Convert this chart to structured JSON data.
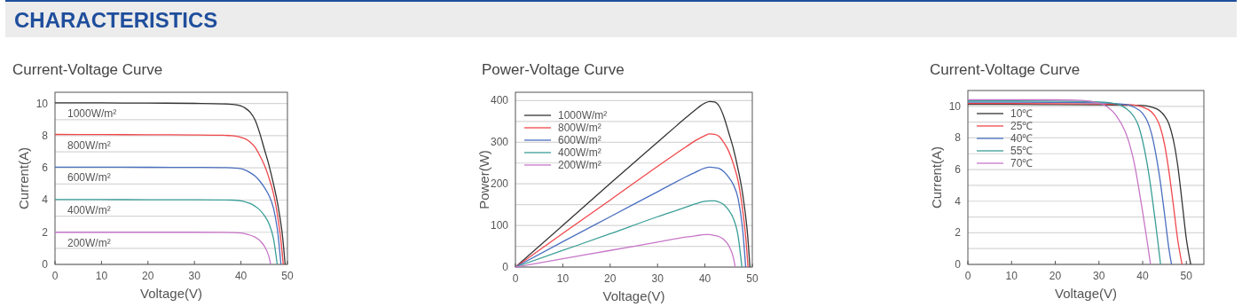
{
  "chart_data": [
    {
      "type": "other",
      "title": "CHARACTERISTICS"
    },
    {
      "type": "line",
      "title": "Current-Voltage Curve",
      "xlabel": "Voltage(V)",
      "ylabel": "Current(A)",
      "xlim": [
        0,
        50
      ],
      "ylim": [
        0,
        10.7
      ],
      "xticks": [
        0,
        10,
        20,
        30,
        40,
        50
      ],
      "yticks": [
        0,
        {
          "value": 1,
          "label": null
        },
        2,
        {
          "value": 3,
          "label": null
        },
        4,
        {
          "value": 5,
          "label": null
        },
        6,
        {
          "value": 7,
          "label": null
        },
        8,
        {
          "value": 9,
          "label": null
        },
        10
      ],
      "grid": "y",
      "legend": false,
      "series": [
        {
          "name": "1000W/m²",
          "color": "#333333",
          "x": [
            0,
            10,
            20,
            30,
            36,
            38,
            40,
            41,
            42,
            43,
            44,
            45,
            46,
            47,
            48,
            49,
            49.5
          ],
          "values": [
            10.05,
            10.04,
            10.03,
            10.01,
            9.98,
            9.95,
            9.85,
            9.7,
            9.45,
            9.0,
            8.2,
            7.2,
            6.2,
            5.0,
            3.6,
            1.6,
            0
          ]
        },
        {
          "name": "800W/m²",
          "color": "#f0474b",
          "x": [
            0,
            10,
            20,
            30,
            36,
            38,
            40,
            41,
            42,
            43,
            44,
            45,
            46,
            47,
            48,
            48.6,
            49.1
          ],
          "values": [
            8.08,
            8.07,
            8.06,
            8.05,
            8.03,
            8.0,
            7.9,
            7.8,
            7.6,
            7.3,
            6.8,
            6.2,
            5.4,
            4.4,
            2.8,
            1.5,
            0
          ]
        },
        {
          "name": "600W/m²",
          "color": "#4a6fc0",
          "x": [
            0,
            10,
            20,
            30,
            36,
            38,
            40,
            41,
            42,
            43,
            44,
            45,
            46,
            47,
            48,
            48.6
          ],
          "values": [
            6.05,
            6.05,
            6.04,
            6.03,
            6.02,
            6.0,
            5.95,
            5.85,
            5.7,
            5.5,
            5.2,
            4.8,
            4.3,
            3.5,
            1.8,
            0
          ]
        },
        {
          "name": "400W/m²",
          "color": "#3a9e96",
          "x": [
            0,
            10,
            20,
            30,
            36,
            38,
            40,
            41,
            42,
            43,
            44,
            45,
            46,
            47,
            47.8
          ],
          "values": [
            4.03,
            4.03,
            4.02,
            4.02,
            4.01,
            4.0,
            3.95,
            3.88,
            3.78,
            3.62,
            3.4,
            3.05,
            2.55,
            1.6,
            0
          ]
        },
        {
          "name": "200W/m²",
          "color": "#c776c8",
          "x": [
            0,
            10,
            20,
            30,
            36,
            38,
            40,
            41,
            42,
            43,
            44,
            45,
            46,
            46.4
          ],
          "values": [
            2.0,
            2.0,
            2.0,
            2.0,
            1.99,
            1.98,
            1.95,
            1.9,
            1.82,
            1.7,
            1.5,
            1.15,
            0.5,
            0
          ]
        }
      ]
    },
    {
      "type": "line",
      "title": "Power-Voltage Curve",
      "xlabel": "Voltage(V)",
      "ylabel": "Power(W)",
      "xlim": [
        0,
        50
      ],
      "ylim": [
        0,
        420
      ],
      "xticks": [
        0,
        10,
        20,
        30,
        40,
        50
      ],
      "yticks": [
        0,
        {
          "value": 50,
          "label": null
        },
        100,
        {
          "value": 150,
          "label": null
        },
        200,
        {
          "value": 250,
          "label": null
        },
        300,
        {
          "value": 350,
          "label": null
        },
        400
      ],
      "grid": "y",
      "legend": "top left",
      "series": [
        {
          "name": "1000W/m²",
          "color": "#333333",
          "x": [
            0,
            10,
            20,
            30,
            36,
            38,
            40,
            41,
            42,
            43,
            44,
            45,
            46,
            47,
            48,
            49,
            49.5
          ],
          "values": [
            0,
            100,
            201,
            300,
            359,
            378,
            394,
            398,
            397,
            387,
            361,
            324,
            285,
            235,
            173,
            78,
            0
          ]
        },
        {
          "name": "800W/m²",
          "color": "#f0474b",
          "x": [
            0,
            10,
            20,
            30,
            36,
            38,
            40,
            41,
            42,
            43,
            44,
            45,
            46,
            47,
            48,
            48.6,
            49.1
          ],
          "values": [
            0,
            81,
            161,
            242,
            289,
            304,
            316,
            320,
            319,
            314,
            299,
            279,
            248,
            207,
            134,
            73,
            0
          ]
        },
        {
          "name": "600W/m²",
          "color": "#4a6fc0",
          "x": [
            0,
            10,
            20,
            30,
            36,
            38,
            40,
            41,
            42,
            43,
            44,
            45,
            46,
            47,
            48,
            48.6
          ],
          "values": [
            0,
            61,
            121,
            181,
            217,
            228,
            238,
            240,
            239,
            237,
            229,
            216,
            198,
            165,
            86,
            0
          ]
        },
        {
          "name": "400W/m²",
          "color": "#3a9e96",
          "x": [
            0,
            10,
            20,
            30,
            36,
            38,
            40,
            41,
            42,
            43,
            44,
            45,
            46,
            47,
            47.8
          ],
          "values": [
            0,
            40,
            80,
            121,
            144,
            152,
            158,
            159,
            159,
            156,
            150,
            137,
            117,
            75,
            0
          ]
        },
        {
          "name": "200W/m²",
          "color": "#c776c8",
          "x": [
            0,
            10,
            20,
            30,
            36,
            38,
            40,
            41,
            42,
            43,
            44,
            45,
            46,
            46.4
          ],
          "values": [
            0,
            20,
            40,
            60,
            72,
            75,
            78,
            78,
            76,
            73,
            66,
            52,
            23,
            0
          ]
        }
      ]
    },
    {
      "type": "line",
      "title": "Current-Voltage Curve",
      "xlabel": "Voltage(V)",
      "ylabel": "Current(A)",
      "xlim": [
        0,
        54
      ],
      "ylim": [
        0,
        11
      ],
      "xticks": [
        0,
        10,
        20,
        30,
        40,
        50
      ],
      "yticks": [
        0,
        {
          "value": 1,
          "label": null
        },
        2,
        {
          "value": 3,
          "label": null
        },
        4,
        {
          "value": 5,
          "label": null
        },
        6,
        {
          "value": 7,
          "label": null
        },
        8,
        {
          "value": 9,
          "label": null
        },
        10
      ],
      "grid": "y",
      "legend": "top left",
      "series": [
        {
          "name": "10℃",
          "color": "#333333",
          "x": [
            0,
            10,
            20,
            30,
            40,
            42,
            44,
            45,
            46,
            47,
            48,
            49,
            50,
            51
          ],
          "values": [
            10.12,
            10.12,
            10.11,
            10.1,
            10.05,
            9.95,
            9.7,
            9.4,
            8.9,
            7.9,
            6.3,
            4.0,
            1.6,
            0
          ]
        },
        {
          "name": "25℃",
          "color": "#f0474b",
          "x": [
            0,
            10,
            20,
            30,
            38,
            40,
            42,
            43,
            44,
            45,
            46,
            47,
            48,
            49
          ],
          "values": [
            10.18,
            10.18,
            10.17,
            10.15,
            10.08,
            9.95,
            9.65,
            9.3,
            8.7,
            7.6,
            5.9,
            3.8,
            1.6,
            0
          ]
        },
        {
          "name": "40℃",
          "color": "#4a6fc0",
          "x": [
            0,
            10,
            20,
            30,
            36,
            38,
            40,
            41,
            42,
            43,
            44,
            45,
            46,
            46.6
          ],
          "values": [
            10.26,
            10.26,
            10.25,
            10.22,
            10.12,
            9.95,
            9.55,
            9.1,
            8.3,
            7.0,
            5.3,
            3.2,
            1.0,
            0
          ]
        },
        {
          "name": "55℃",
          "color": "#3a9e96",
          "x": [
            0,
            10,
            20,
            30,
            34,
            36,
            38,
            39,
            40,
            41,
            42,
            43,
            44.1
          ],
          "values": [
            10.34,
            10.34,
            10.33,
            10.28,
            10.15,
            9.9,
            9.35,
            8.8,
            7.8,
            6.4,
            4.6,
            2.5,
            0
          ]
        },
        {
          "name": "70℃",
          "color": "#c776c8",
          "x": [
            0,
            10,
            20,
            26,
            30,
            32,
            34,
            36,
            37,
            38,
            39,
            40,
            41,
            41.8
          ],
          "values": [
            10.42,
            10.42,
            10.41,
            10.38,
            10.2,
            9.95,
            9.4,
            8.4,
            7.6,
            6.5,
            5.0,
            3.3,
            1.5,
            0
          ]
        }
      ]
    }
  ]
}
